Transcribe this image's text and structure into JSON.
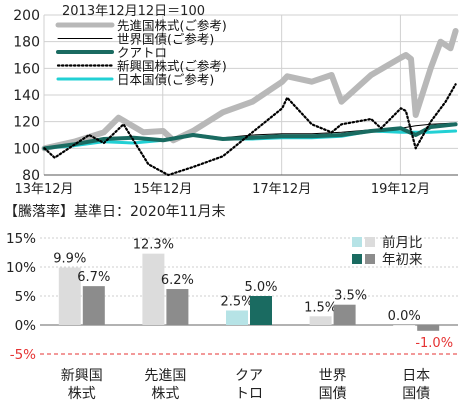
{
  "colors": {
    "developed": "#b8b8b8",
    "world_bond": "#000000",
    "quatro": "#1a6b61",
    "emerging": "#000000",
    "japan_bond": "#22d0d4",
    "prev_month": "#dcdcdc",
    "ytd": "#8c8c8c",
    "neg_label": "#e53333",
    "axis_neg": "#e53333"
  },
  "chart_data": [
    {
      "type": "line",
      "subtitle": "2013年12月12日＝100",
      "ylim": [
        80,
        200
      ],
      "yticks": [
        80,
        100,
        120,
        140,
        160,
        180,
        200
      ],
      "x_range": [
        "2013-12-12",
        "2020-11-30"
      ],
      "xticks": [
        {
          "date": "2013-12-12",
          "label": "13年12月"
        },
        {
          "date": "2015-12-12",
          "label": "15年12月"
        },
        {
          "date": "2017-12-12",
          "label": "17年12月"
        },
        {
          "date": "2019-12-12",
          "label": "19年12月"
        }
      ],
      "grid": true,
      "legend_position": "top-left",
      "series": [
        {
          "name": "先進国株式(ご参考)",
          "style": "thick-gray",
          "x": [
            "2013-12",
            "2014-06",
            "2014-12",
            "2015-03",
            "2015-08",
            "2015-12",
            "2016-02",
            "2016-06",
            "2016-12",
            "2017-06",
            "2017-12",
            "2018-01",
            "2018-06",
            "2018-10",
            "2018-12",
            "2019-06",
            "2019-12",
            "2020-01",
            "2020-02",
            "2020-03",
            "2020-06",
            "2020-08",
            "2020-10",
            "2020-11"
          ],
          "values": [
            100,
            105,
            112,
            123,
            112,
            113,
            106,
            113,
            127,
            135,
            150,
            154,
            150,
            155,
            135,
            155,
            168,
            170,
            167,
            125,
            160,
            180,
            175,
            188
          ]
        },
        {
          "name": "世界国債(ご参考)",
          "style": "thin-black",
          "x": [
            "2013-12",
            "2014-06",
            "2014-12",
            "2015-06",
            "2015-12",
            "2016-06",
            "2016-12",
            "2017-06",
            "2017-12",
            "2018-06",
            "2018-12",
            "2019-06",
            "2019-12",
            "2020-03",
            "2020-06",
            "2020-11"
          ],
          "values": [
            100,
            103,
            106,
            108,
            107,
            111,
            108,
            110,
            111,
            111,
            112,
            114,
            115,
            117,
            118,
            119
          ]
        },
        {
          "name": "クアトロ",
          "style": "thick-teal",
          "x": [
            "2013-12",
            "2014-06",
            "2014-12",
            "2015-06",
            "2015-12",
            "2016-06",
            "2016-12",
            "2017-06",
            "2017-12",
            "2018-06",
            "2018-12",
            "2019-06",
            "2019-12",
            "2020-03",
            "2020-06",
            "2020-11"
          ],
          "values": [
            100,
            103,
            107,
            108,
            106,
            110,
            107,
            108,
            109,
            109,
            110,
            113,
            115,
            110,
            116,
            118
          ]
        },
        {
          "name": "新興国株式(ご参考)",
          "style": "dotted-black",
          "x": [
            "2013-12",
            "2014-02",
            "2014-09",
            "2014-12",
            "2015-04",
            "2015-09",
            "2016-01",
            "2016-06",
            "2016-12",
            "2017-06",
            "2017-12",
            "2018-01",
            "2018-06",
            "2018-10",
            "2018-12",
            "2019-06",
            "2019-08",
            "2019-12",
            "2020-01",
            "2020-03",
            "2020-06",
            "2020-09",
            "2020-11"
          ],
          "values": [
            100,
            93,
            110,
            104,
            118,
            88,
            80,
            86,
            94,
            112,
            130,
            138,
            118,
            112,
            118,
            122,
            115,
            130,
            128,
            100,
            120,
            135,
            148
          ]
        },
        {
          "name": "日本国債(ご参考)",
          "style": "cyan",
          "x": [
            "2013-12",
            "2014-06",
            "2014-12",
            "2015-06",
            "2015-12",
            "2016-06",
            "2016-12",
            "2017-06",
            "2017-12",
            "2018-06",
            "2018-12",
            "2019-06",
            "2019-12",
            "2020-06",
            "2020-11"
          ],
          "values": [
            100,
            102,
            105,
            104,
            106,
            110,
            107,
            107,
            108,
            108,
            109,
            113,
            112,
            112,
            113
          ]
        }
      ]
    },
    {
      "type": "bar",
      "title": "【騰落率】基準日：2020年11月末",
      "ylim": [
        -5,
        15
      ],
      "yticks": [
        {
          "value": 15,
          "label": "15%"
        },
        {
          "value": 10,
          "label": "10%"
        },
        {
          "value": 5,
          "label": "5%"
        },
        {
          "value": 0,
          "label": "0%"
        },
        {
          "value": -5,
          "label": "-5%"
        }
      ],
      "categories": [
        [
          "新興国",
          "株式"
        ],
        [
          "先進国",
          "株式"
        ],
        [
          "クア",
          "トロ"
        ],
        [
          "世界",
          "国債"
        ],
        [
          "日本",
          "国債"
        ]
      ],
      "legend_position": "top-right",
      "series": [
        {
          "name": "前月比",
          "values": [
            9.9,
            12.3,
            2.5,
            1.5,
            0.0
          ],
          "labels": [
            "9.9%",
            "12.3%",
            "2.5%",
            "1.5%",
            "0.0%"
          ]
        },
        {
          "name": "年初来",
          "values": [
            6.7,
            6.2,
            5.0,
            3.5,
            -1.0
          ],
          "labels": [
            "6.7%",
            "6.2%",
            "5.0%",
            "3.5%",
            "-1.0%"
          ]
        }
      ]
    }
  ]
}
